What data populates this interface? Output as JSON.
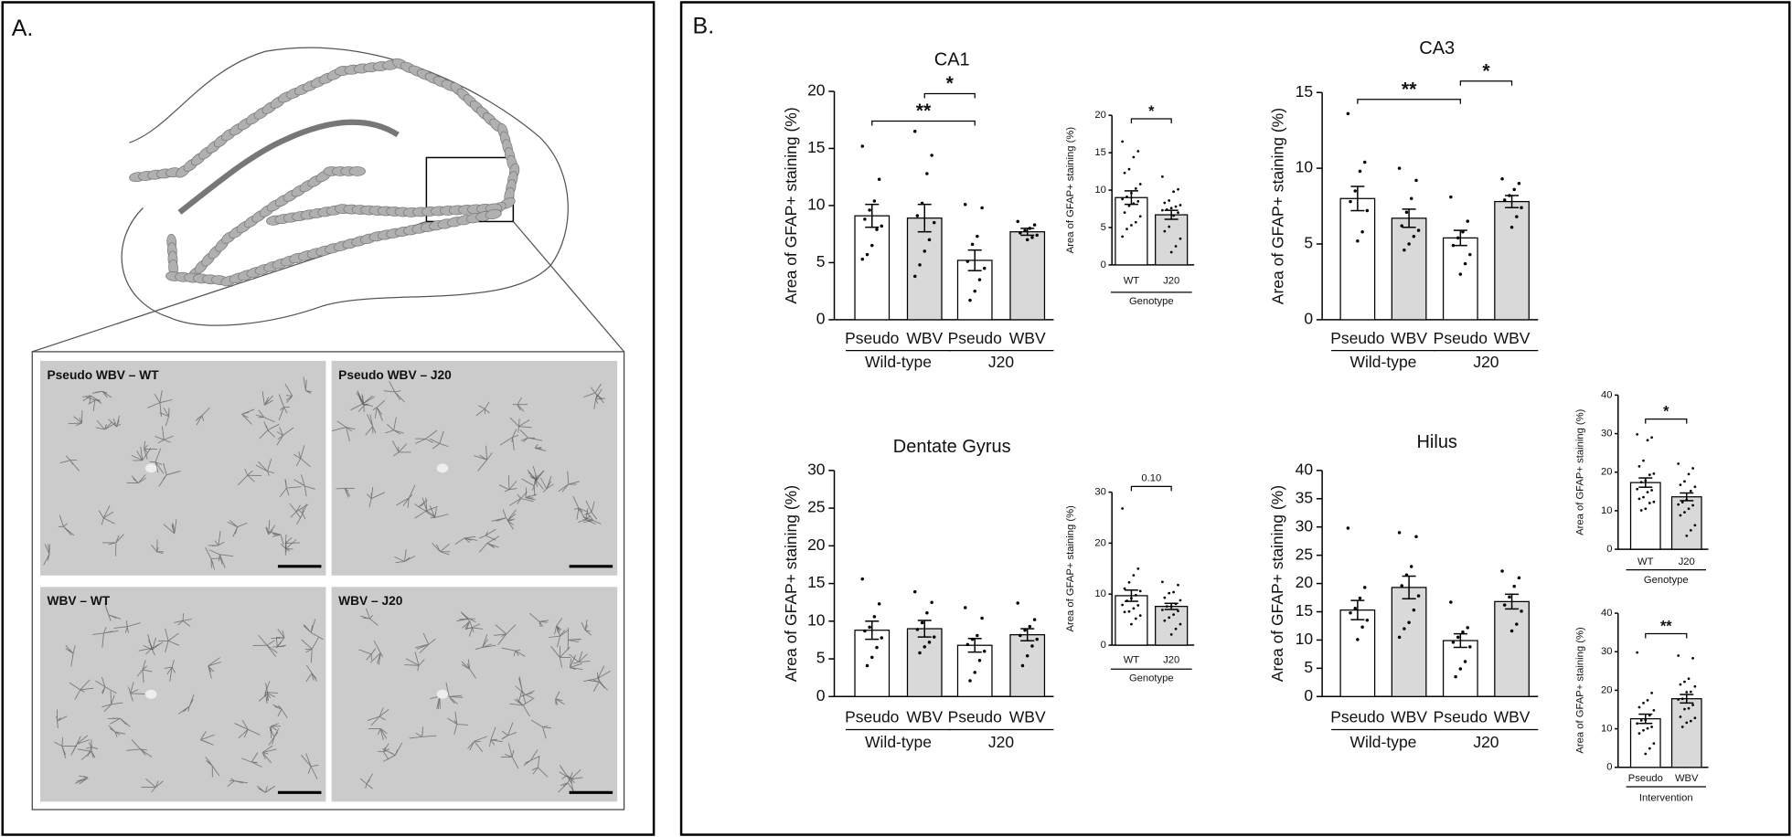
{
  "panel_labels": [
    "A.",
    "B."
  ],
  "micrographs": [
    "Pseudo WBV – WT",
    "Pseudo WBV – J20",
    "WBV – WT",
    "WBV – J20"
  ],
  "chart_data": [
    {
      "type": "bar",
      "title": "CA1",
      "ylabel": "Area of GFAP+ staining (%)",
      "categories": [
        "Pseudo",
        "WBV",
        "Pseudo",
        "WBV"
      ],
      "groups": [
        "Wild-type",
        "J20"
      ],
      "colors": [
        "#ffffff",
        "#d9d9d9",
        "#ffffff",
        "#d9d9d9"
      ],
      "values": [
        9.1,
        8.9,
        5.2,
        7.7
      ],
      "errors": [
        1.0,
        1.2,
        0.9,
        0.3
      ],
      "points": [
        [
          15.2,
          12.3,
          10.4,
          9.6,
          8.8,
          8.2,
          7.9,
          6.5,
          5.7,
          5.3
        ],
        [
          16.5,
          14.4,
          12.8,
          10.2,
          9.1,
          8.5,
          7.0,
          6.0,
          4.8,
          3.8
        ],
        [
          10.1,
          9.8,
          7.3,
          6.6,
          5.1,
          4.5,
          3.5,
          2.5,
          1.7
        ],
        [
          8.6,
          8.3,
          8.0,
          7.8,
          7.6,
          7.4,
          7.2,
          7.0
        ]
      ],
      "ylim": [
        0,
        20
      ],
      "yticks": [
        0,
        5,
        10,
        15,
        20
      ],
      "comparisons": [
        {
          "label": "**",
          "bars": [
            0,
            2
          ]
        },
        {
          "label": "*",
          "bars": [
            1,
            2
          ]
        }
      ]
    },
    {
      "type": "bar",
      "ylabel": "Area of GFAP+ staining (%)",
      "categories": [
        "WT",
        "J20"
      ],
      "x_group_label": "Genotype",
      "colors": [
        "#ffffff",
        "#d9d9d9"
      ],
      "values": [
        9.0,
        6.7
      ],
      "errors": [
        0.9,
        0.6
      ],
      "points": [
        [
          16.5,
          15.2,
          14.4,
          12.8,
          12.3,
          10.8,
          10.2,
          9.6,
          9.1,
          8.8,
          8.5,
          8.2,
          7.9,
          7.0,
          6.5,
          5.7,
          5.3,
          4.8,
          3.8
        ],
        [
          11.8,
          10.1,
          9.8,
          8.6,
          8.3,
          8.0,
          7.8,
          7.6,
          7.4,
          7.3,
          7.0,
          6.6,
          5.1,
          4.5,
          3.5,
          2.5,
          1.7
        ]
      ],
      "ylim": [
        0,
        20
      ],
      "yticks": [
        0,
        5,
        10,
        15,
        20
      ],
      "comparisons": [
        {
          "label": "*",
          "bars": [
            0,
            1
          ]
        }
      ]
    },
    {
      "type": "bar",
      "title": "CA3",
      "ylabel": "Area of GFAP+ staining (%)",
      "categories": [
        "Pseudo",
        "WBV",
        "Pseudo",
        "WBV"
      ],
      "groups": [
        "Wild-type",
        "J20"
      ],
      "colors": [
        "#ffffff",
        "#d9d9d9",
        "#ffffff",
        "#d9d9d9"
      ],
      "values": [
        8.0,
        6.7,
        5.4,
        7.8
      ],
      "errors": [
        0.8,
        0.6,
        0.5,
        0.4
      ],
      "points": [
        [
          13.6,
          10.4,
          9.8,
          8.5,
          7.8,
          7.2,
          5.8,
          5.2
        ],
        [
          10.0,
          9.2,
          8.0,
          7.1,
          6.2,
          5.9,
          5.5,
          5.0,
          4.6
        ],
        [
          8.1,
          6.5,
          5.8,
          5.4,
          4.9,
          4.3,
          3.7,
          3.0
        ],
        [
          9.3,
          9.0,
          8.6,
          8.2,
          7.9,
          7.4,
          6.8,
          6.1
        ]
      ],
      "ylim": [
        0,
        15
      ],
      "yticks": [
        0,
        5,
        10,
        15
      ],
      "comparisons": [
        {
          "label": "**",
          "bars": [
            0,
            2
          ]
        },
        {
          "label": "*",
          "bars": [
            2,
            3
          ]
        }
      ]
    },
    {
      "type": "bar",
      "title": "Dentate Gyrus",
      "ylabel": "Area of GFAP+ staining (%)",
      "categories": [
        "Pseudo",
        "WBV",
        "Pseudo",
        "WBV"
      ],
      "groups": [
        "Wild-type",
        "J20"
      ],
      "colors": [
        "#ffffff",
        "#d9d9d9",
        "#ffffff",
        "#d9d9d9"
      ],
      "values": [
        8.8,
        9.0,
        6.8,
        8.2
      ],
      "errors": [
        1.2,
        1.1,
        0.9,
        0.8
      ],
      "points": [
        [
          15.6,
          12.3,
          10.6,
          9.2,
          8.7,
          7.8,
          6.5,
          5.2,
          4.1
        ],
        [
          13.9,
          12.5,
          11.1,
          9.8,
          8.9,
          7.9,
          7.2,
          6.6,
          5.8
        ],
        [
          11.8,
          10.4,
          8.1,
          7.6,
          6.9,
          6.0,
          4.8,
          3.2,
          2.1
        ],
        [
          12.4,
          10.2,
          9.3,
          8.8,
          8.1,
          7.6,
          6.7,
          5.4,
          4.1
        ]
      ],
      "ylim": [
        0,
        30
      ],
      "yticks": [
        0,
        5,
        10,
        15,
        20,
        25,
        30
      ]
    },
    {
      "type": "bar",
      "ylabel": "Area of GFAP+ staining (%)",
      "categories": [
        "WT",
        "J20"
      ],
      "x_group_label": "Genotype",
      "colors": [
        "#ffffff",
        "#d9d9d9"
      ],
      "values": [
        9.7,
        7.6
      ],
      "errors": [
        1.1,
        0.6
      ],
      "points": [
        [
          26.8,
          15.0,
          13.7,
          12.3,
          11.1,
          10.6,
          9.8,
          9.2,
          8.7,
          7.9,
          7.8,
          7.2,
          6.6,
          6.5,
          5.8,
          5.2,
          4.1
        ],
        [
          12.4,
          11.8,
          10.4,
          10.2,
          9.3,
          8.8,
          8.1,
          7.6,
          7.6,
          6.9,
          6.7,
          6.0,
          5.4,
          4.8,
          4.1,
          3.2,
          2.1
        ]
      ],
      "ylim": [
        0,
        30
      ],
      "yticks": [
        0,
        10,
        20,
        30
      ],
      "comparisons": [
        {
          "label": "0.10",
          "bars": [
            0,
            1
          ]
        }
      ]
    },
    {
      "type": "bar",
      "title": "Hilus",
      "ylabel": "Area of GFAP+ staining (%)",
      "categories": [
        "Pseudo",
        "WBV",
        "Pseudo",
        "WBV"
      ],
      "groups": [
        "Wild-type",
        "J20"
      ],
      "colors": [
        "#ffffff",
        "#d9d9d9",
        "#ffffff",
        "#d9d9d9"
      ],
      "values": [
        15.3,
        19.3,
        9.9,
        16.8
      ],
      "errors": [
        1.7,
        2.0,
        1.2,
        1.3
      ],
      "points": [
        [
          29.8,
          19.3,
          17.4,
          15.6,
          14.8,
          13.5,
          12.3,
          10.1
        ],
        [
          29.0,
          28.3,
          23.0,
          21.5,
          19.6,
          17.8,
          15.3,
          13.1,
          12.0,
          10.5
        ],
        [
          16.7,
          12.2,
          11.4,
          10.5,
          9.6,
          8.8,
          6.2,
          4.9,
          3.5
        ],
        [
          22.2,
          21.0,
          19.5,
          17.6,
          16.2,
          15.1,
          12.8,
          11.6
        ]
      ],
      "ylim": [
        0,
        40
      ],
      "yticks": [
        0,
        5,
        10,
        15,
        20,
        25,
        30,
        35,
        40
      ]
    },
    {
      "type": "bar",
      "ylabel": "Area of GFAP+ staining (%)",
      "categories": [
        "WT",
        "J20"
      ],
      "x_group_label": "Genotype",
      "colors": [
        "#ffffff",
        "#d9d9d9"
      ],
      "values": [
        17.3,
        13.6
      ],
      "errors": [
        1.2,
        1.0
      ],
      "points": [
        [
          29.8,
          29.0,
          28.3,
          23.0,
          21.5,
          19.6,
          19.3,
          17.8,
          17.4,
          15.6,
          15.3,
          14.8,
          13.5,
          13.1,
          12.3,
          12.0,
          10.5,
          10.1
        ],
        [
          22.2,
          21.0,
          19.5,
          17.6,
          16.7,
          16.2,
          15.1,
          12.8,
          12.2,
          11.6,
          11.4,
          10.5,
          9.6,
          8.8,
          6.2,
          4.9,
          3.5
        ]
      ],
      "ylim": [
        0,
        40
      ],
      "yticks": [
        0,
        10,
        20,
        30,
        40
      ],
      "comparisons": [
        {
          "label": "*",
          "bars": [
            0,
            1
          ]
        }
      ]
    },
    {
      "type": "bar",
      "ylabel": "Area of GFAP+ staining (%)",
      "categories": [
        "Pseudo",
        "WBV"
      ],
      "x_group_label": "Intervention",
      "colors": [
        "#ffffff",
        "#d9d9d9"
      ],
      "values": [
        12.6,
        17.8
      ],
      "errors": [
        1.2,
        1.1
      ],
      "points": [
        [
          29.8,
          19.3,
          17.4,
          16.7,
          15.6,
          14.8,
          13.5,
          12.3,
          12.2,
          11.4,
          10.5,
          10.1,
          9.6,
          8.8,
          6.2,
          4.9,
          3.5
        ],
        [
          29.0,
          28.3,
          23.0,
          22.2,
          21.5,
          21.0,
          19.6,
          19.5,
          17.8,
          17.6,
          16.2,
          15.3,
          15.1,
          13.1,
          12.8,
          12.0,
          11.6,
          10.5
        ]
      ],
      "ylim": [
        0,
        40
      ],
      "yticks": [
        0,
        10,
        20,
        30,
        40
      ],
      "comparisons": [
        {
          "label": "**",
          "bars": [
            0,
            1
          ]
        }
      ]
    }
  ]
}
